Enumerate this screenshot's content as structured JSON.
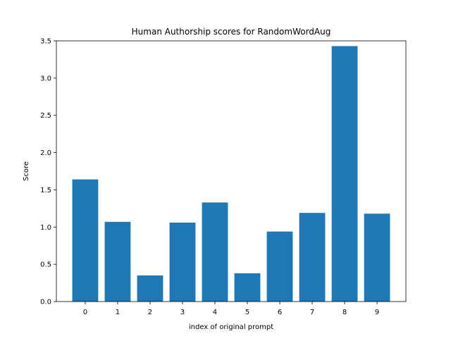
{
  "chart_data": {
    "type": "bar",
    "title": "Human Authorship scores for RandomWordAug",
    "xlabel": "index of original prompt",
    "ylabel": "Score",
    "categories": [
      "0",
      "1",
      "2",
      "3",
      "4",
      "5",
      "6",
      "7",
      "8",
      "9"
    ],
    "values": [
      1.64,
      1.07,
      0.35,
      1.06,
      1.33,
      0.38,
      0.94,
      1.19,
      3.43,
      1.18
    ],
    "ylim": [
      0,
      3.5
    ],
    "yticks": [
      "0.0",
      "0.5",
      "1.0",
      "1.5",
      "2.0",
      "2.5",
      "3.0",
      "3.5"
    ],
    "grid": false,
    "legend": "none",
    "bar_color": "#1f77b4"
  }
}
